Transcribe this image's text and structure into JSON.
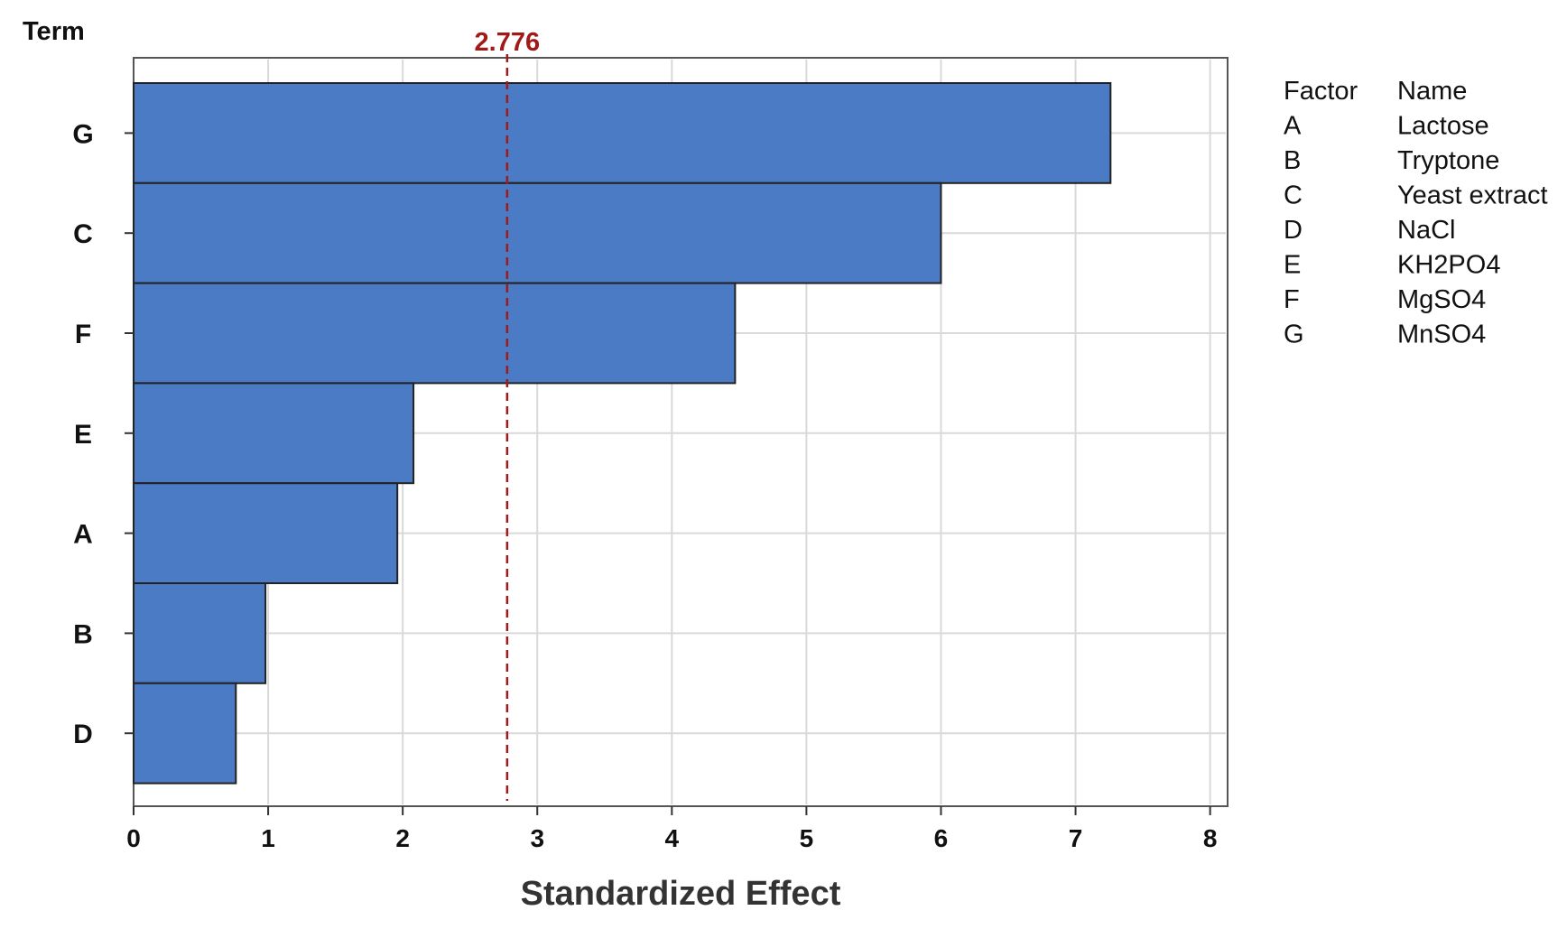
{
  "chart_data": {
    "type": "bar",
    "orientation": "horizontal",
    "ylabel": "Term",
    "xlabel": "Standardized Effect",
    "categories": [
      "G",
      "C",
      "F",
      "E",
      "A",
      "B",
      "D"
    ],
    "values": [
      7.26,
      6.0,
      4.47,
      2.08,
      1.96,
      0.98,
      0.76
    ],
    "xlim": [
      0,
      8.13
    ],
    "xticks": [
      0,
      1,
      2,
      3,
      4,
      5,
      6,
      7,
      8
    ],
    "grid": true,
    "bar_color": "#4a7bc4",
    "reference_line": {
      "value": 2.776,
      "label": "2.776",
      "color": "#a11a1a"
    },
    "legend": {
      "placement": "right",
      "headers": [
        "Factor",
        "Name"
      ],
      "rows": [
        [
          "A",
          "Lactose"
        ],
        [
          "B",
          "Tryptone"
        ],
        [
          "C",
          "Yeast extract"
        ],
        [
          "D",
          "NaCl"
        ],
        [
          "E",
          "KH2PO4"
        ],
        [
          "F",
          "MgSO4"
        ],
        [
          "G",
          "MnSO4"
        ]
      ]
    }
  }
}
